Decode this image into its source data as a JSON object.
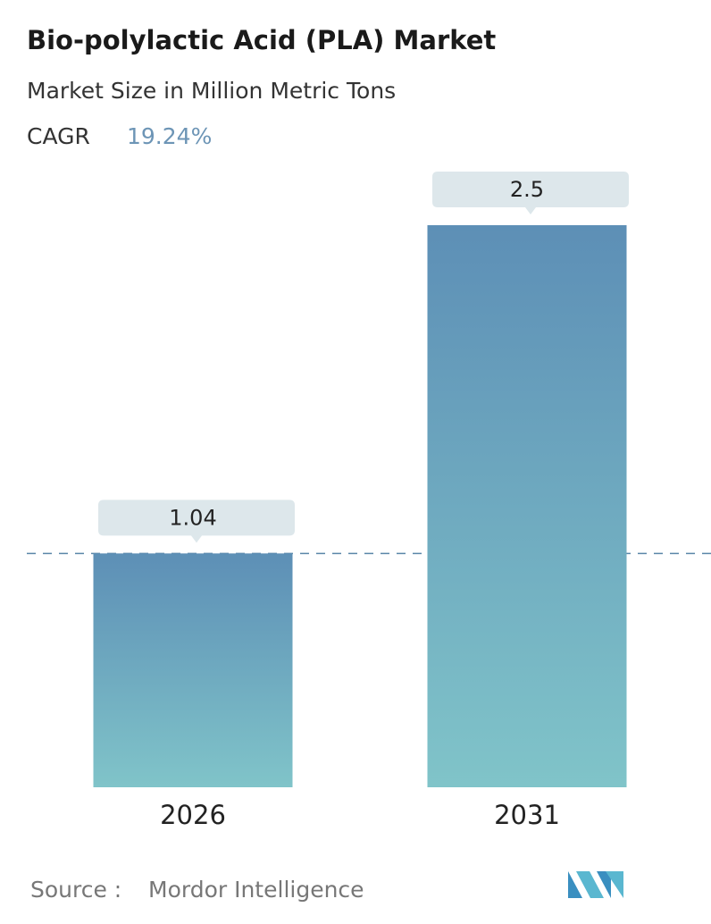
{
  "chart_data": {
    "type": "bar",
    "title": "Bio-polylactic Acid (PLA) Market",
    "subtitle": "Market Size in Million Metric Tons",
    "cagr_label": "CAGR",
    "cagr": "19.24%",
    "categories": [
      "2026",
      "2031"
    ],
    "values": [
      1.04,
      2.5
    ],
    "source_label": "Source :",
    "source": "Mordor Intelligence"
  }
}
